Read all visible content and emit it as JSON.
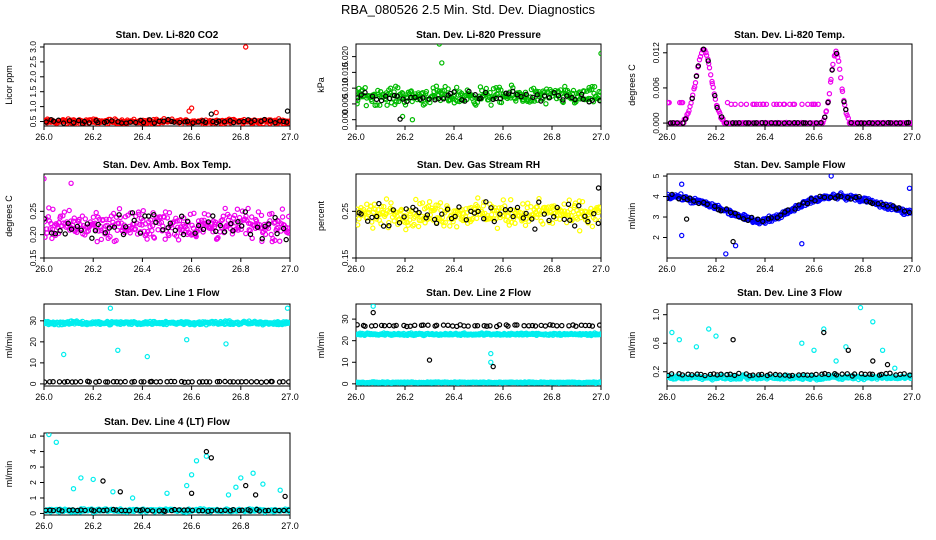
{
  "figure_title": "RBA_080526  2.5 Min. Std. Dev. Diagnostics",
  "chart_data": [
    {
      "type": "scatter",
      "title": "Stan. Dev. Li-820 CO2",
      "ylabel": "Licor ppm",
      "xlim": [
        26.0,
        27.0
      ],
      "ylim": [
        0.35,
        3.1
      ],
      "xticks": [
        "26.0",
        "26.2",
        "26.4",
        "26.6",
        "26.8",
        "27.0"
      ],
      "yticks": [
        "0.5",
        "1.0",
        "1.5",
        "2.0",
        "2.5",
        "3.0"
      ],
      "series": [
        {
          "name": "primary",
          "color": "#ff0000",
          "n": 300,
          "base": 0.5,
          "spread": 0.12,
          "outliers": [
            [
              26.6,
              0.95
            ],
            [
              26.59,
              0.85
            ],
            [
              26.82,
              3.0
            ],
            [
              26.7,
              0.8
            ]
          ]
        },
        {
          "name": "secondary",
          "color": "#000000",
          "n": 55,
          "base": 0.5,
          "spread": 0.1,
          "outliers": [
            [
              26.99,
              0.85
            ],
            [
              26.68,
              0.75
            ]
          ]
        }
      ]
    },
    {
      "type": "scatter",
      "title": "Stan. Dev. Li-820 Pressure",
      "ylabel": "kPa",
      "xlim": [
        26.0,
        27.0
      ],
      "ylim": [
        -0.002,
        0.024
      ],
      "xticks": [
        "26.0",
        "26.2",
        "26.4",
        "26.6",
        "26.8",
        "27.0"
      ],
      "yticks": [
        "0.000",
        "0.005",
        "0.010",
        "0.015",
        "0.020"
      ],
      "series": [
        {
          "name": "primary",
          "color": "#00bb00",
          "n": 300,
          "base": 0.0075,
          "spread": 0.004,
          "outliers": [
            [
              26.34,
              0.024
            ],
            [
              26.35,
              0.018
            ],
            [
              26.23,
              0.0
            ],
            [
              27.0,
              0.021
            ],
            [
              26.19,
              0.001
            ]
          ]
        },
        {
          "name": "secondary",
          "color": "#000000",
          "n": 55,
          "base": 0.007,
          "spread": 0.003,
          "outliers": [
            [
              26.18,
              0.0002
            ]
          ]
        }
      ]
    },
    {
      "type": "scatter",
      "title": "Stan. Dev. Li-820 Temp.",
      "ylabel": "degrees C",
      "xlim": [
        26.0,
        27.0
      ],
      "ylim": [
        -0.0005,
        0.0135
      ],
      "xticks": [
        "26.0",
        "26.2",
        "26.4",
        "26.6",
        "26.8",
        "27.0"
      ],
      "yticks": [
        "0.000",
        "0.006",
        "0.012"
      ],
      "series": [
        {
          "name": "primary",
          "color": "#ee00ee",
          "n": 260,
          "profile": "temp",
          "outliers": []
        },
        {
          "name": "secondary",
          "color": "#000000",
          "n": 55,
          "profile": "temp",
          "outliers": []
        }
      ]
    },
    {
      "type": "scatter",
      "title": "Stan. Dev. Amb. Box Temp.",
      "ylabel": "degrees C",
      "xlim": [
        26.0,
        27.0
      ],
      "ylim": [
        0.15,
        0.33
      ],
      "xticks": [
        "26.0",
        "26.2",
        "26.4",
        "26.6",
        "26.8",
        "27.0"
      ],
      "yticks": [
        "0.15",
        "0.20",
        "0.25"
      ],
      "series": [
        {
          "name": "primary",
          "color": "#ee00ee",
          "n": 330,
          "base": 0.22,
          "spread": 0.045,
          "outliers": [
            [
              26.0,
              0.32
            ],
            [
              26.11,
              0.31
            ]
          ]
        },
        {
          "name": "secondary",
          "color": "#000000",
          "n": 55,
          "base": 0.22,
          "spread": 0.04,
          "outliers": []
        }
      ]
    },
    {
      "type": "scatter",
      "title": "Stan. Dev. Gas Stream RH",
      "ylabel": "percent",
      "xlim": [
        26.0,
        27.0
      ],
      "ylim": [
        0.15,
        0.33
      ],
      "xticks": [
        "26.0",
        "26.2",
        "26.4",
        "26.6",
        "26.8",
        "27.0"
      ],
      "yticks": [
        "0.15",
        "0.25"
      ],
      "series": [
        {
          "name": "primary",
          "color": "#ffff00",
          "n": 330,
          "base": 0.245,
          "spread": 0.04,
          "outliers": []
        },
        {
          "name": "secondary",
          "color": "#000000",
          "n": 55,
          "base": 0.24,
          "spread": 0.04,
          "outliers": [
            [
              26.99,
              0.3
            ]
          ]
        }
      ]
    },
    {
      "type": "scatter",
      "title": "Stan. Dev. Sample Flow",
      "ylabel": "ml/min",
      "xlim": [
        26.0,
        27.0
      ],
      "ylim": [
        1.0,
        5.1
      ],
      "xticks": [
        "26.0",
        "26.2",
        "26.4",
        "26.6",
        "26.8",
        "27.0"
      ],
      "yticks": [
        "2",
        "3",
        "4",
        "5"
      ],
      "series": [
        {
          "name": "primary",
          "color": "#0000ff",
          "n": 330,
          "profile": "flow",
          "outliers": [
            [
              26.06,
              2.1
            ],
            [
              26.24,
              1.2
            ],
            [
              26.28,
              1.6
            ],
            [
              26.55,
              1.7
            ],
            [
              26.67,
              5.0
            ],
            [
              26.99,
              4.4
            ],
            [
              26.06,
              4.6
            ]
          ]
        },
        {
          "name": "secondary",
          "color": "#000000",
          "n": 55,
          "profile": "flow",
          "outliers": [
            [
              26.27,
              1.8
            ],
            [
              26.08,
              2.9
            ]
          ]
        }
      ]
    },
    {
      "type": "scatter",
      "title": "Stan. Dev. Line 1 Flow",
      "ylabel": "ml/min",
      "xlim": [
        26.0,
        27.0
      ],
      "ylim": [
        -1,
        38
      ],
      "xticks": [
        "26.0",
        "26.2",
        "26.4",
        "26.6",
        "26.8",
        "27.0"
      ],
      "yticks": [
        "0",
        "10",
        "20",
        "30"
      ],
      "series": [
        {
          "name": "primary",
          "color": "#00eeee",
          "n": 340,
          "base": 29,
          "spread": 1.2,
          "outliers": [
            [
              26.08,
              14
            ],
            [
              26.3,
              16
            ],
            [
              26.42,
              13
            ],
            [
              26.58,
              21
            ],
            [
              26.74,
              19
            ],
            [
              26.99,
              36
            ],
            [
              26.27,
              36
            ]
          ]
        },
        {
          "name": "secondary",
          "color": "#000000",
          "n": 55,
          "base": 1,
          "spread": 0.3,
          "outliers": []
        }
      ]
    },
    {
      "type": "scatter",
      "title": "Stan. Dev. Line 2 Flow",
      "ylabel": "ml/min",
      "xlim": [
        26.0,
        27.0
      ],
      "ylim": [
        -1,
        37
      ],
      "xticks": [
        "26.0",
        "26.2",
        "26.4",
        "26.6",
        "26.8",
        "27.0"
      ],
      "yticks": [
        "0",
        "10",
        "20",
        "30"
      ],
      "series": [
        {
          "name": "primary",
          "color": "#00eeee",
          "n": 300,
          "base": 23,
          "spread": 0.8,
          "outliers": [
            [
              26.07,
              36
            ],
            [
              26.55,
              10
            ],
            [
              26.55,
              14
            ]
          ]
        },
        {
          "name": "primary-low",
          "color": "#00eeee",
          "n": 300,
          "base": 0.6,
          "spread": 0.4,
          "outliers": []
        },
        {
          "name": "secondary",
          "color": "#000000",
          "n": 55,
          "base": 27,
          "spread": 0.6,
          "outliers": [
            [
              26.07,
              33
            ],
            [
              26.3,
              11
            ],
            [
              26.56,
              8
            ]
          ]
        }
      ]
    },
    {
      "type": "scatter",
      "title": "Stan. Dev. Line 3 Flow",
      "ylabel": "ml/min",
      "xlim": [
        26.0,
        27.0
      ],
      "ylim": [
        0.0,
        1.15
      ],
      "xticks": [
        "26.0",
        "26.2",
        "26.4",
        "26.6",
        "26.8",
        "27.0"
      ],
      "yticks": [
        "0.2",
        "0.6",
        "1.0"
      ],
      "series": [
        {
          "name": "primary",
          "color": "#00eeee",
          "n": 300,
          "base": 0.12,
          "spread": 0.04,
          "outliers": [
            [
              26.02,
              0.75
            ],
            [
              26.05,
              0.65
            ],
            [
              26.12,
              0.55
            ],
            [
              26.17,
              0.8
            ],
            [
              26.2,
              0.7
            ],
            [
              26.55,
              0.6
            ],
            [
              26.6,
              0.5
            ],
            [
              26.64,
              0.8
            ],
            [
              26.69,
              0.35
            ],
            [
              26.73,
              0.55
            ],
            [
              26.79,
              1.1
            ],
            [
              26.84,
              0.9
            ],
            [
              26.88,
              0.5
            ],
            [
              26.93,
              0.25
            ]
          ]
        },
        {
          "name": "secondary",
          "color": "#000000",
          "n": 55,
          "base": 0.16,
          "spread": 0.03,
          "outliers": [
            [
              26.27,
              0.65
            ],
            [
              26.64,
              0.75
            ],
            [
              26.74,
              0.5
            ],
            [
              26.84,
              0.35
            ],
            [
              26.9,
              0.3
            ]
          ]
        }
      ]
    },
    {
      "type": "scatter",
      "title": "Stan. Dev. Line 4 (LT) Flow",
      "ylabel": "ml/min",
      "xlim": [
        26.0,
        27.0
      ],
      "ylim": [
        -0.1,
        5.2
      ],
      "xticks": [
        "26.0",
        "26.2",
        "26.4",
        "26.6",
        "26.8",
        "27.0"
      ],
      "yticks": [
        "0",
        "1",
        "2",
        "3",
        "4",
        "5"
      ],
      "series": [
        {
          "name": "primary",
          "color": "#00eeee",
          "n": 300,
          "base": 0.2,
          "spread": 0.15,
          "outliers": [
            [
              26.02,
              5.1
            ],
            [
              26.05,
              4.6
            ],
            [
              26.15,
              2.3
            ],
            [
              26.2,
              2.2
            ],
            [
              26.12,
              1.6
            ],
            [
              26.28,
              1.4
            ],
            [
              26.36,
              1.0
            ],
            [
              26.5,
              1.3
            ],
            [
              26.58,
              1.8
            ],
            [
              26.6,
              2.5
            ],
            [
              26.62,
              3.4
            ],
            [
              26.66,
              3.7
            ],
            [
              26.8,
              2.3
            ],
            [
              26.85,
              2.6
            ],
            [
              26.89,
              1.9
            ],
            [
              26.96,
              1.5
            ],
            [
              26.75,
              1.2
            ],
            [
              26.78,
              1.7
            ]
          ]
        },
        {
          "name": "secondary",
          "color": "#000000",
          "n": 55,
          "base": 0.2,
          "spread": 0.08,
          "outliers": [
            [
              26.24,
              2.1
            ],
            [
              26.31,
              1.4
            ],
            [
              26.66,
              4.0
            ],
            [
              26.68,
              3.6
            ],
            [
              26.82,
              1.8
            ],
            [
              26.86,
              1.2
            ],
            [
              26.98,
              1.1
            ],
            [
              26.6,
              1.3
            ]
          ]
        }
      ]
    }
  ]
}
